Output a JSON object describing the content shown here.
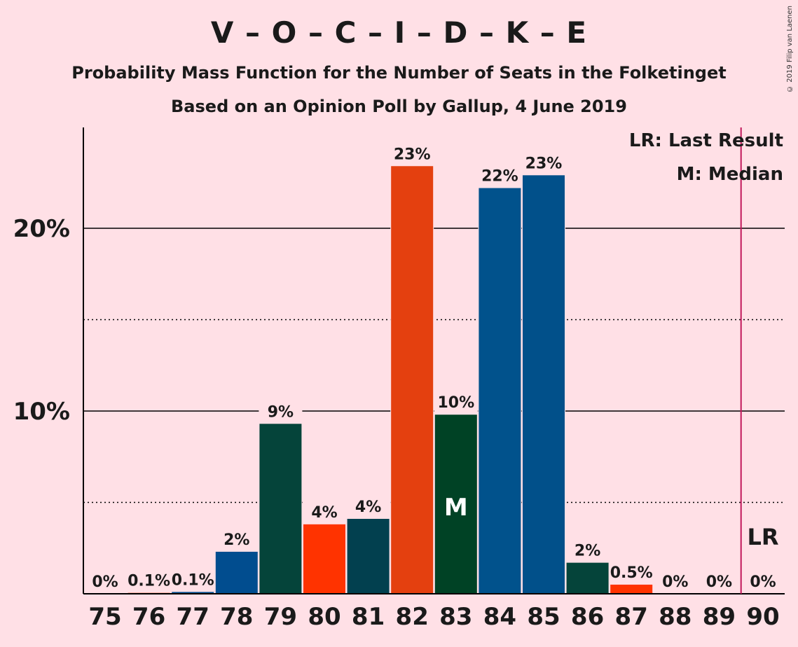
{
  "title": "V – O – C – I – D – K – E",
  "subtitle": "Probability Mass Function for the Number of Seats in the Folketinget",
  "subtitle2": "Based on an Opinion Poll by Gallup, 4 June 2019",
  "copyright": "© 2019 Filip van Laenen",
  "legend": {
    "last_result": "LR: Last Result",
    "median": "M: Median"
  },
  "markers": {
    "median_label": "M",
    "last_result_label": "LR"
  },
  "colors": {
    "background": "#FFE0E6",
    "last_result_line": "#C2185B"
  },
  "chart_data": {
    "type": "bar",
    "title": "V – O – C – I – D – K – E",
    "xlabel": "",
    "ylabel": "",
    "ylim": [
      0,
      25.5
    ],
    "yticks": [
      {
        "value": 10,
        "label": "10%",
        "style": "solid"
      },
      {
        "value": 20,
        "label": "20%",
        "style": "solid"
      }
    ],
    "minor_gridlines": [
      5,
      15
    ],
    "categories": [
      "75",
      "76",
      "77",
      "78",
      "79",
      "80",
      "81",
      "82",
      "83",
      "84",
      "85",
      "86",
      "87",
      "88",
      "89",
      "90"
    ],
    "values": [
      0,
      0.05,
      0.1,
      2.3,
      9.3,
      3.8,
      4.1,
      23.4,
      9.8,
      22.2,
      22.9,
      1.7,
      0.5,
      0,
      0,
      0
    ],
    "labels": [
      "0%",
      "0.1%",
      "0.1%",
      "2%",
      "9%",
      "4%",
      "4%",
      "23%",
      "10%",
      "22%",
      "23%",
      "2%",
      "0.5%",
      "0%",
      "0%",
      "0%"
    ],
    "bar_colors": [
      "#014D8F",
      "#E4400F",
      "#014D8F",
      "#014D8F",
      "#05443A",
      "#FF3300",
      "#02404F",
      "#E4400F",
      "#004225",
      "#01528C",
      "#01508A",
      "#05443A",
      "#FF3300",
      "#014D8F",
      "#014D8F",
      "#014D8F"
    ],
    "median": "83",
    "last_result": "90",
    "grid": true,
    "legend_position": "top-right"
  }
}
